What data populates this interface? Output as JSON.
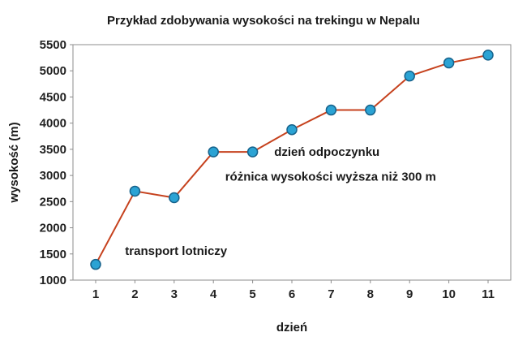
{
  "chart_data": {
    "type": "line",
    "title": "Przykład zdobywania wysokości na trekingu w Nepalu",
    "xlabel": "dzień",
    "ylabel": "wysokość (m)",
    "x": [
      1,
      2,
      3,
      4,
      5,
      6,
      7,
      8,
      9,
      10,
      11
    ],
    "values": [
      1300,
      2700,
      2575,
      3450,
      3450,
      3875,
      4250,
      4250,
      4900,
      5150,
      5300
    ],
    "xlim": [
      0.5,
      11.5
    ],
    "ylim": [
      1000,
      5500
    ],
    "xticks": [
      "1",
      "2",
      "3",
      "4",
      "5",
      "6",
      "7",
      "8",
      "9",
      "10",
      "11"
    ],
    "yticks": [
      1000,
      1500,
      2000,
      2500,
      3000,
      3500,
      4000,
      4500,
      5000,
      5500
    ],
    "grid": false,
    "legend": "none",
    "annotations": [
      {
        "text": "transport lotniczy",
        "x": 1.75,
        "y": 1560
      },
      {
        "text": "dzień odpoczynku",
        "x": 5.55,
        "y": 3450
      },
      {
        "text": "różnica wysokości wyższa niż 300 m",
        "x": 4.3,
        "y": 2980
      }
    ],
    "colors": {
      "line": "#c6421e",
      "marker_fill": "#2ba3d4",
      "marker_stroke": "#16628b",
      "plot_border": "#8c8c8c",
      "background": "#ffffff"
    }
  }
}
